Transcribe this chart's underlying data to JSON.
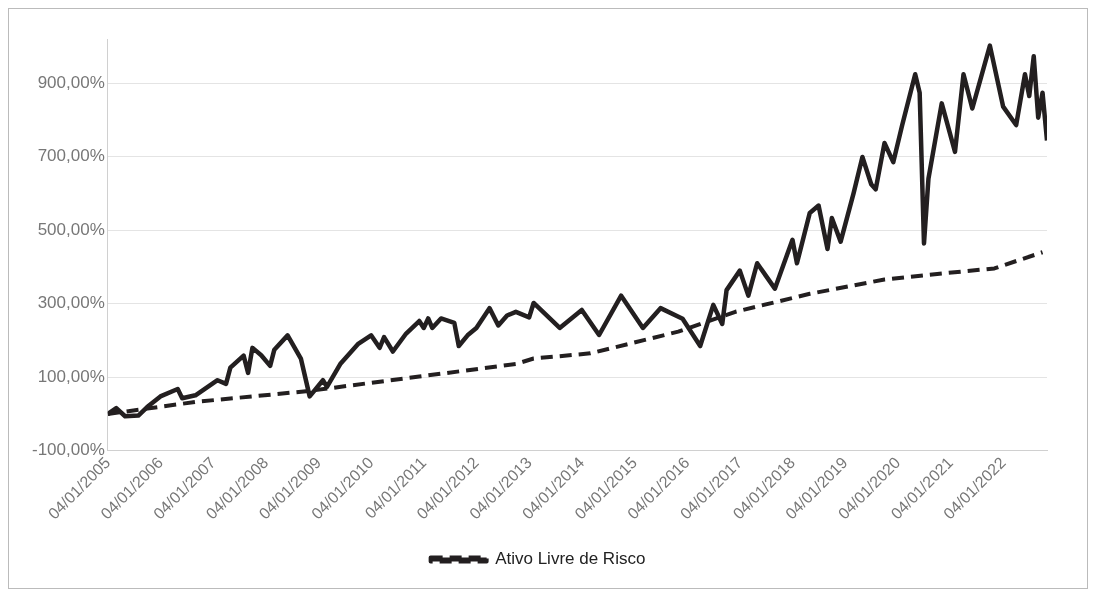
{
  "chart_data": {
    "type": "line",
    "legend": "bottom",
    "grid": "y",
    "marker": "none",
    "xlim": [
      "2005-01",
      "2022-11"
    ],
    "ylim": [
      -100,
      1020
    ],
    "yticks": [
      {
        "value": -100,
        "label": "-100,00%"
      },
      {
        "value": 100,
        "label": "100,00%"
      },
      {
        "value": 300,
        "label": "300,00%"
      },
      {
        "value": 500,
        "label": "500,00%"
      },
      {
        "value": 700,
        "label": "700,00%"
      },
      {
        "value": 900,
        "label": "900,00%"
      }
    ],
    "xticks": [
      {
        "value": "2005-01-04",
        "label": "04/01/2005"
      },
      {
        "value": "2006-01-04",
        "label": "04/01/2006"
      },
      {
        "value": "2007-01-04",
        "label": "04/01/2007"
      },
      {
        "value": "2008-01-04",
        "label": "04/01/2008"
      },
      {
        "value": "2009-01-04",
        "label": "04/01/2009"
      },
      {
        "value": "2010-01-04",
        "label": "04/01/2010"
      },
      {
        "value": "2011-01-04",
        "label": "04/01/2011"
      },
      {
        "value": "2012-01-04",
        "label": "04/01/2012"
      },
      {
        "value": "2013-01-04",
        "label": "04/01/2013"
      },
      {
        "value": "2014-01-04",
        "label": "04/01/2014"
      },
      {
        "value": "2015-01-04",
        "label": "04/01/2015"
      },
      {
        "value": "2016-01-04",
        "label": "04/01/2016"
      },
      {
        "value": "2017-01-04",
        "label": "04/01/2017"
      },
      {
        "value": "2018-01-04",
        "label": "04/01/2018"
      },
      {
        "value": "2019-01-04",
        "label": "04/01/2019"
      },
      {
        "value": "2020-01-04",
        "label": "04/01/2020"
      },
      {
        "value": "2021-01-04",
        "label": "04/01/2021"
      },
      {
        "value": "2022-01-04",
        "label": "04/01/2022"
      }
    ],
    "series": [
      {
        "color": "#231f20",
        "line_style": "solid",
        "x": [
          "2005-01",
          "2005-03",
          "2005-05",
          "2005-08",
          "2005-10",
          "2006-01",
          "2006-05",
          "2006-06",
          "2006-09",
          "2007-02",
          "2007-04",
          "2007-05",
          "2007-08",
          "2007-09",
          "2007-10",
          "2007-12",
          "2008-02",
          "2008-03",
          "2008-06",
          "2008-09",
          "2008-11",
          "2009-02",
          "2009-03",
          "2009-06",
          "2009-10",
          "2010-01",
          "2010-03",
          "2010-04",
          "2010-06",
          "2010-09",
          "2010-12",
          "2011-01",
          "2011-02",
          "2011-03",
          "2011-05",
          "2011-08",
          "2011-09",
          "2011-11",
          "2012-01",
          "2012-04",
          "2012-06",
          "2012-08",
          "2012-10",
          "2013-01",
          "2013-02",
          "2013-08",
          "2014-01",
          "2014-05",
          "2014-10",
          "2015-03",
          "2015-07",
          "2015-12",
          "2016-04",
          "2016-07",
          "2016-09",
          "2016-10",
          "2017-01",
          "2017-03",
          "2017-05",
          "2017-09",
          "2018-01",
          "2018-02",
          "2018-05",
          "2018-07",
          "2018-09",
          "2018-10",
          "2018-12",
          "2019-03",
          "2019-05",
          "2019-07",
          "2019-08",
          "2019-10",
          "2019-12",
          "2020-02",
          "2020-05",
          "2020-06",
          "2020-07",
          "2020-08",
          "2020-11",
          "2021-02",
          "2021-04",
          "2021-06",
          "2021-10",
          "2022-01",
          "2022-04",
          "2022-06",
          "2022-07",
          "2022-08",
          "2022-09",
          "2022-10",
          "2022-11"
        ],
        "values": [
          0,
          16,
          -6,
          -4,
          19,
          48,
          68,
          43,
          51,
          92,
          82,
          126,
          159,
          112,
          180,
          160,
          131,
          175,
          214,
          151,
          48,
          92,
          74,
          136,
          190,
          214,
          180,
          209,
          170,
          219,
          253,
          234,
          260,
          234,
          260,
          248,
          185,
          214,
          234,
          288,
          241,
          268,
          278,
          263,
          302,
          234,
          283,
          215,
          322,
          234,
          288,
          259,
          185,
          297,
          245,
          337,
          390,
          322,
          410,
          341,
          474,
          410,
          547,
          567,
          449,
          533,
          469,
          601,
          699,
          625,
          611,
          737,
          685,
          786,
          924,
          874,
          464,
          640,
          845,
          713,
          924,
          831,
          1002,
          836,
          786,
          924,
          865,
          973,
          806,
          874,
          744
        ]
      },
      {
        "name": "Ativo Livre de Risco",
        "color": "#231f20",
        "line_style": "dashed",
        "x": [
          "2005-01",
          "2006-09",
          "2008-11",
          "2010-12",
          "2012-10",
          "2013-02",
          "2014-03",
          "2015-11",
          "2016-12",
          "2018-05",
          "2019-10",
          "2020-10",
          "2021-11",
          "2022-05",
          "2022-10"
        ],
        "values": [
          0,
          33,
          63,
          102,
          136,
          151,
          165,
          224,
          278,
          327,
          366,
          381,
          396,
          420,
          440
        ]
      }
    ]
  }
}
